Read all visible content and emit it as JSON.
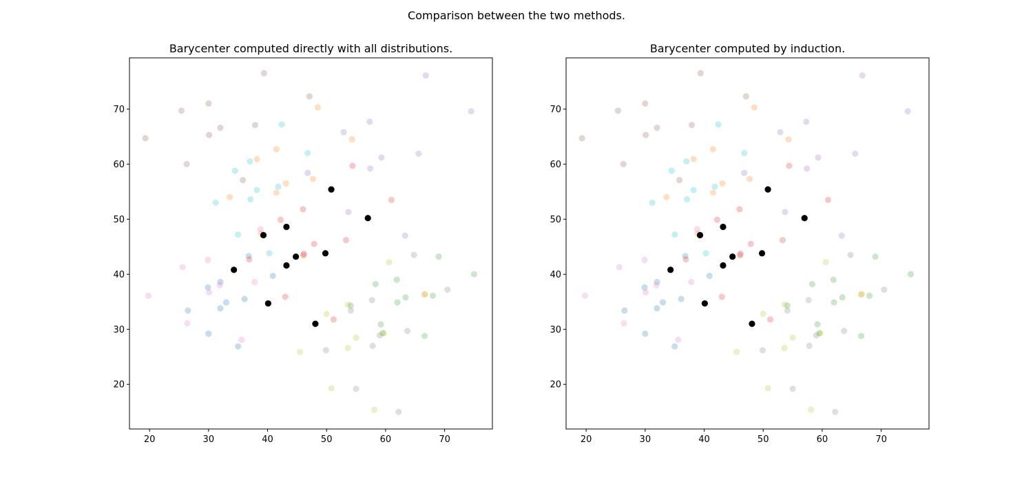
{
  "figure_title": "Comparison between the two methods.",
  "colors": {
    "blue": "#1f77b4",
    "orange": "#ff7f0e",
    "green": "#2ca02c",
    "red": "#d62728",
    "purple": "#9467bd",
    "brown": "#8c564b",
    "pink": "#e377c2",
    "gray": "#7f7f7f",
    "olive": "#bcbd22",
    "cyan": "#17becf",
    "barycenter": "#000000"
  },
  "chart_data": [
    {
      "type": "scatter",
      "title": "Barycenter computed directly with all distributions.",
      "xlabel": "",
      "ylabel": "",
      "xlim": [
        16.6,
        78.1
      ],
      "ylim": [
        11.9,
        79.3
      ],
      "xticks": [
        "20",
        "30",
        "40",
        "50",
        "60",
        "70"
      ],
      "yticks": [
        "20",
        "30",
        "40",
        "50",
        "60",
        "70"
      ],
      "grid": false,
      "legend": "none",
      "point_alpha": 0.25,
      "series": [
        {
          "color": "blue",
          "points": [
            [
              26.5,
              33.4
            ],
            [
              29.9,
              37.6
            ],
            [
              30.0,
              29.2
            ],
            [
              32.0,
              33.8
            ],
            [
              32.0,
              38.6
            ],
            [
              33.0,
              34.9
            ],
            [
              35.0,
              26.9
            ],
            [
              36.1,
              35.5
            ],
            [
              36.8,
              43.3
            ],
            [
              40.9,
              39.7
            ]
          ]
        },
        {
          "color": "orange",
          "points": [
            [
              33.6,
              54.0
            ],
            [
              38.2,
              60.9
            ],
            [
              38.9,
              47.4
            ],
            [
              41.5,
              62.7
            ],
            [
              41.5,
              54.8
            ],
            [
              43.1,
              56.5
            ],
            [
              46.1,
              43.4
            ],
            [
              47.7,
              57.3
            ],
            [
              48.5,
              70.3
            ],
            [
              54.3,
              64.5
            ],
            [
              66.6,
              36.3
            ]
          ]
        },
        {
          "color": "green",
          "points": [
            [
              54.1,
              34.3
            ],
            [
              58.3,
              38.2
            ],
            [
              59.2,
              30.9
            ],
            [
              59.5,
              29.3
            ],
            [
              61.9,
              39.0
            ],
            [
              62.0,
              34.9
            ],
            [
              63.4,
              35.8
            ],
            [
              66.6,
              28.8
            ],
            [
              68.0,
              36.1
            ],
            [
              69.0,
              43.2
            ],
            [
              75.0,
              40.0
            ]
          ]
        },
        {
          "color": "red",
          "points": [
            [
              36.9,
              42.7
            ],
            [
              42.2,
              49.9
            ],
            [
              43.0,
              35.9
            ],
            [
              46.0,
              51.8
            ],
            [
              46.1,
              43.6
            ],
            [
              47.9,
              45.5
            ],
            [
              51.2,
              31.8
            ],
            [
              53.3,
              46.2
            ],
            [
              54.4,
              59.7
            ],
            [
              61.0,
              53.5
            ]
          ]
        },
        {
          "color": "purple",
          "points": [
            [
              46.8,
              58.4
            ],
            [
              52.9,
              65.8
            ],
            [
              53.7,
              51.3
            ],
            [
              57.3,
              67.7
            ],
            [
              57.4,
              59.2
            ],
            [
              59.3,
              61.2
            ],
            [
              63.3,
              47.0
            ],
            [
              65.6,
              61.9
            ],
            [
              66.8,
              76.1
            ],
            [
              74.5,
              69.6
            ]
          ]
        },
        {
          "color": "brown",
          "points": [
            [
              19.3,
              64.7
            ],
            [
              25.4,
              69.7
            ],
            [
              26.3,
              60.0
            ],
            [
              30.0,
              71.0
            ],
            [
              30.1,
              65.3
            ],
            [
              32.0,
              66.6
            ],
            [
              35.8,
              57.1
            ],
            [
              37.9,
              67.1
            ],
            [
              39.4,
              76.5
            ],
            [
              47.1,
              72.3
            ]
          ]
        },
        {
          "color": "pink",
          "points": [
            [
              19.8,
              36.1
            ],
            [
              25.6,
              41.3
            ],
            [
              26.4,
              31.1
            ],
            [
              29.9,
              42.6
            ],
            [
              30.1,
              36.7
            ],
            [
              31.9,
              38.0
            ],
            [
              35.6,
              28.1
            ],
            [
              37.8,
              38.6
            ],
            [
              38.8,
              48.2
            ],
            [
              46.2,
              43.8
            ]
          ]
        },
        {
          "color": "gray",
          "points": [
            [
              49.9,
              26.2
            ],
            [
              54.1,
              33.4
            ],
            [
              55.0,
              19.2
            ],
            [
              57.8,
              27.0
            ],
            [
              57.7,
              35.3
            ],
            [
              59.0,
              28.9
            ],
            [
              62.2,
              15.0
            ],
            [
              63.7,
              29.7
            ],
            [
              64.8,
              43.5
            ],
            [
              70.5,
              37.2
            ]
          ]
        },
        {
          "color": "olive",
          "points": [
            [
              45.5,
              25.9
            ],
            [
              50.0,
              32.8
            ],
            [
              50.8,
              19.3
            ],
            [
              53.6,
              26.6
            ],
            [
              53.6,
              34.5
            ],
            [
              55.0,
              28.5
            ],
            [
              58.1,
              15.4
            ],
            [
              59.7,
              29.3
            ],
            [
              60.6,
              42.2
            ],
            [
              66.7,
              36.4
            ]
          ]
        },
        {
          "color": "cyan",
          "points": [
            [
              31.2,
              53.0
            ],
            [
              34.5,
              58.8
            ],
            [
              35.0,
              47.2
            ],
            [
              37.1,
              53.6
            ],
            [
              37.0,
              60.5
            ],
            [
              38.2,
              55.3
            ],
            [
              41.8,
              55.9
            ],
            [
              42.4,
              67.2
            ],
            [
              40.3,
              43.8
            ],
            [
              46.8,
              62.0
            ]
          ]
        }
      ],
      "barycenter": [
        [
          34.3,
          40.8
        ],
        [
          39.3,
          47.1
        ],
        [
          40.1,
          34.7
        ],
        [
          43.2,
          48.6
        ],
        [
          43.2,
          41.6
        ],
        [
          44.8,
          43.2
        ],
        [
          48.1,
          31.0
        ],
        [
          49.8,
          43.8
        ],
        [
          50.8,
          55.4
        ],
        [
          57.0,
          50.2
        ]
      ]
    },
    {
      "type": "scatter",
      "title": "Barycenter computed by induction.",
      "xlabel": "",
      "ylabel": "",
      "xlim": [
        16.6,
        78.1
      ],
      "ylim": [
        11.9,
        79.3
      ],
      "xticks": [
        "20",
        "30",
        "40",
        "50",
        "60",
        "70"
      ],
      "yticks": [
        "20",
        "30",
        "40",
        "50",
        "60",
        "70"
      ],
      "grid": false,
      "legend": "none",
      "point_alpha": 0.25,
      "series": [
        {
          "color": "blue",
          "points": [
            [
              26.5,
              33.4
            ],
            [
              29.9,
              37.6
            ],
            [
              30.0,
              29.2
            ],
            [
              32.0,
              33.8
            ],
            [
              32.0,
              38.6
            ],
            [
              33.0,
              34.9
            ],
            [
              35.0,
              26.9
            ],
            [
              36.1,
              35.5
            ],
            [
              36.8,
              43.3
            ],
            [
              40.9,
              39.7
            ]
          ]
        },
        {
          "color": "orange",
          "points": [
            [
              33.6,
              54.0
            ],
            [
              38.2,
              60.9
            ],
            [
              38.9,
              47.4
            ],
            [
              41.5,
              62.7
            ],
            [
              41.5,
              54.8
            ],
            [
              43.1,
              56.5
            ],
            [
              46.1,
              43.4
            ],
            [
              47.7,
              57.3
            ],
            [
              48.5,
              70.3
            ],
            [
              54.3,
              64.5
            ],
            [
              66.6,
              36.3
            ]
          ]
        },
        {
          "color": "green",
          "points": [
            [
              54.1,
              34.3
            ],
            [
              58.3,
              38.2
            ],
            [
              59.2,
              30.9
            ],
            [
              59.5,
              29.3
            ],
            [
              61.9,
              39.0
            ],
            [
              62.0,
              34.9
            ],
            [
              63.4,
              35.8
            ],
            [
              66.6,
              28.8
            ],
            [
              68.0,
              36.1
            ],
            [
              69.0,
              43.2
            ],
            [
              75.0,
              40.0
            ]
          ]
        },
        {
          "color": "red",
          "points": [
            [
              36.9,
              42.7
            ],
            [
              42.2,
              49.9
            ],
            [
              43.0,
              35.9
            ],
            [
              46.0,
              51.8
            ],
            [
              46.1,
              43.6
            ],
            [
              47.9,
              45.5
            ],
            [
              51.2,
              31.8
            ],
            [
              53.3,
              46.2
            ],
            [
              54.4,
              59.7
            ],
            [
              61.0,
              53.5
            ]
          ]
        },
        {
          "color": "purple",
          "points": [
            [
              46.8,
              58.4
            ],
            [
              52.9,
              65.8
            ],
            [
              53.7,
              51.3
            ],
            [
              57.3,
              67.7
            ],
            [
              57.4,
              59.2
            ],
            [
              59.3,
              61.2
            ],
            [
              63.3,
              47.0
            ],
            [
              65.6,
              61.9
            ],
            [
              66.8,
              76.1
            ],
            [
              74.5,
              69.6
            ]
          ]
        },
        {
          "color": "brown",
          "points": [
            [
              19.3,
              64.7
            ],
            [
              25.4,
              69.7
            ],
            [
              26.3,
              60.0
            ],
            [
              30.0,
              71.0
            ],
            [
              30.1,
              65.3
            ],
            [
              32.0,
              66.6
            ],
            [
              35.8,
              57.1
            ],
            [
              37.9,
              67.1
            ],
            [
              39.4,
              76.5
            ],
            [
              47.1,
              72.3
            ]
          ]
        },
        {
          "color": "pink",
          "points": [
            [
              19.8,
              36.1
            ],
            [
              25.6,
              41.3
            ],
            [
              26.4,
              31.1
            ],
            [
              29.9,
              42.6
            ],
            [
              30.1,
              36.7
            ],
            [
              31.9,
              38.0
            ],
            [
              35.6,
              28.1
            ],
            [
              37.8,
              38.6
            ],
            [
              38.8,
              48.2
            ],
            [
              46.2,
              43.8
            ]
          ]
        },
        {
          "color": "gray",
          "points": [
            [
              49.9,
              26.2
            ],
            [
              54.1,
              33.4
            ],
            [
              55.0,
              19.2
            ],
            [
              57.8,
              27.0
            ],
            [
              57.7,
              35.3
            ],
            [
              59.0,
              28.9
            ],
            [
              62.2,
              15.0
            ],
            [
              63.7,
              29.7
            ],
            [
              64.8,
              43.5
            ],
            [
              70.5,
              37.2
            ]
          ]
        },
        {
          "color": "olive",
          "points": [
            [
              45.5,
              25.9
            ],
            [
              50.0,
              32.8
            ],
            [
              50.8,
              19.3
            ],
            [
              53.6,
              26.6
            ],
            [
              53.6,
              34.5
            ],
            [
              55.0,
              28.5
            ],
            [
              58.1,
              15.4
            ],
            [
              59.7,
              29.3
            ],
            [
              60.6,
              42.2
            ],
            [
              66.7,
              36.4
            ]
          ]
        },
        {
          "color": "cyan",
          "points": [
            [
              31.2,
              53.0
            ],
            [
              34.5,
              58.8
            ],
            [
              35.0,
              47.2
            ],
            [
              37.1,
              53.6
            ],
            [
              37.0,
              60.5
            ],
            [
              38.2,
              55.3
            ],
            [
              41.8,
              55.9
            ],
            [
              42.4,
              67.2
            ],
            [
              40.3,
              43.8
            ],
            [
              46.8,
              62.0
            ]
          ]
        }
      ],
      "barycenter": [
        [
          34.3,
          40.8
        ],
        [
          39.3,
          47.1
        ],
        [
          40.1,
          34.7
        ],
        [
          43.2,
          48.6
        ],
        [
          43.2,
          41.6
        ],
        [
          44.8,
          43.2
        ],
        [
          48.1,
          31.0
        ],
        [
          49.8,
          43.8
        ],
        [
          50.8,
          55.4
        ],
        [
          57.0,
          50.2
        ]
      ]
    }
  ]
}
